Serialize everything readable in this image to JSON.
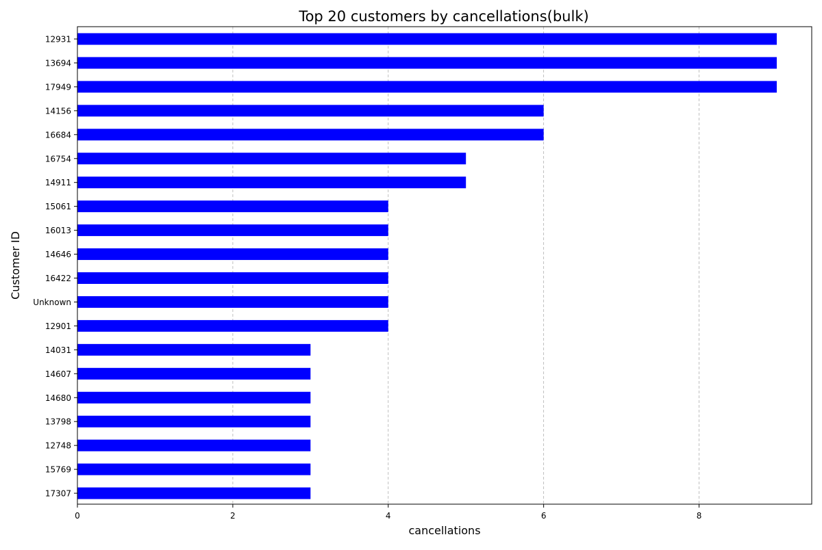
{
  "chart_data": {
    "type": "bar",
    "orientation": "horizontal",
    "title": "Top 20 customers by cancellations(bulk)",
    "xlabel": "cancellations",
    "ylabel": "Customer ID",
    "categories": [
      "12931",
      "13694",
      "17949",
      "14156",
      "16684",
      "16754",
      "14911",
      "15061",
      "16013",
      "14646",
      "16422",
      "Unknown",
      "12901",
      "14031",
      "14607",
      "14680",
      "13798",
      "12748",
      "15769",
      "17307"
    ],
    "values": [
      9,
      9,
      9,
      6,
      6,
      5,
      5,
      4,
      4,
      4,
      4,
      4,
      4,
      3,
      3,
      3,
      3,
      3,
      3,
      3
    ],
    "xlim": [
      0,
      9.45
    ],
    "xticks": [
      0,
      2,
      4,
      6,
      8
    ],
    "grid": "x-dashed",
    "bar_color": "#0000ff",
    "grid_color": "#b0b0b0"
  }
}
